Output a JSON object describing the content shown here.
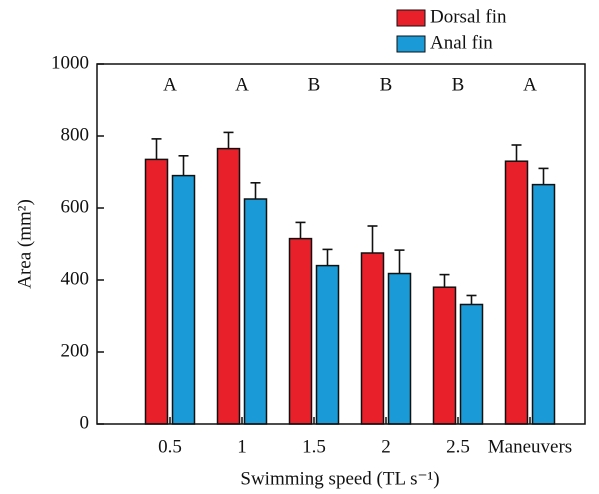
{
  "chart_data": {
    "type": "bar",
    "x_label": "Swimming speed (TL s⁻¹)",
    "y_label": "Area (mm²)",
    "categories": [
      "0.5",
      "1",
      "1.5",
      "2",
      "2.5",
      "Maneuvers"
    ],
    "annotations": [
      "A",
      "A",
      "B",
      "B",
      "B",
      "A"
    ],
    "series": [
      {
        "name": "Dorsal fin",
        "color": "#e8202a",
        "values": [
          735,
          765,
          515,
          475,
          380,
          730
        ],
        "errors": [
          57,
          45,
          45,
          75,
          35,
          45
        ]
      },
      {
        "name": "Anal fin",
        "color": "#1a9ad6",
        "values": [
          690,
          625,
          440,
          418,
          332,
          665
        ],
        "errors": [
          55,
          45,
          45,
          65,
          25,
          45
        ]
      }
    ],
    "ylim": [
      0,
      1000
    ],
    "yticks": [
      0,
      200,
      400,
      600,
      800,
      1000
    ],
    "legend": "top-right"
  }
}
